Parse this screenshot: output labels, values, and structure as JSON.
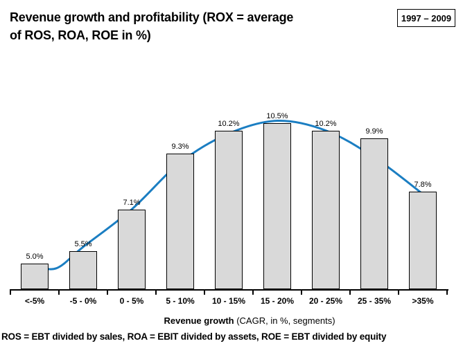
{
  "page": {
    "title_lines": [
      "Revenue growth and profitability (ROX = average",
      "of ROS, ROA, ROE in %)"
    ],
    "period_badge": "1997 – 2009",
    "footnote": "ROS = EBT divided by sales, ROA = EBIT divided by assets, ROE = EBT divided by equity"
  },
  "chart_data": {
    "type": "bar",
    "title": "Revenue growth and profitability (ROX = average of ROS, ROA, ROE in %)",
    "period": "1997 – 2009",
    "categories": [
      "<-5%",
      "-5 - 0%",
      "0 - 5%",
      "5 - 10%",
      "10 - 15%",
      "15 - 20%",
      "20 - 25%",
      "25 - 35%",
      ">35%"
    ],
    "values": [
      5.0,
      5.5,
      7.1,
      9.3,
      10.2,
      10.5,
      10.2,
      9.9,
      7.8
    ],
    "bar_labels": [
      "5.0%",
      "5.5%",
      "7.1%",
      "9.3%",
      "10.2%",
      "10.5%",
      "10.2%",
      "9.9%",
      "7.8%"
    ],
    "xlabel_bold": "Revenue growth",
    "xlabel_rest": " (CAGR, in %, segments)",
    "ylim": [
      4.0,
      11.0
    ],
    "grid": false,
    "legend": "none",
    "bar_fill": "#D9D9D9",
    "bar_border": "#000000",
    "trend_color": "#1B7EC2",
    "trend_curve": [
      [
        0,
        4.92
      ],
      [
        0.45,
        4.82
      ],
      [
        1,
        5.65
      ],
      [
        2,
        7.12
      ],
      [
        3,
        8.95
      ],
      [
        4,
        10.08
      ],
      [
        5,
        10.58
      ],
      [
        6,
        10.2
      ],
      [
        7,
        9.15
      ],
      [
        8,
        7.72
      ]
    ]
  }
}
